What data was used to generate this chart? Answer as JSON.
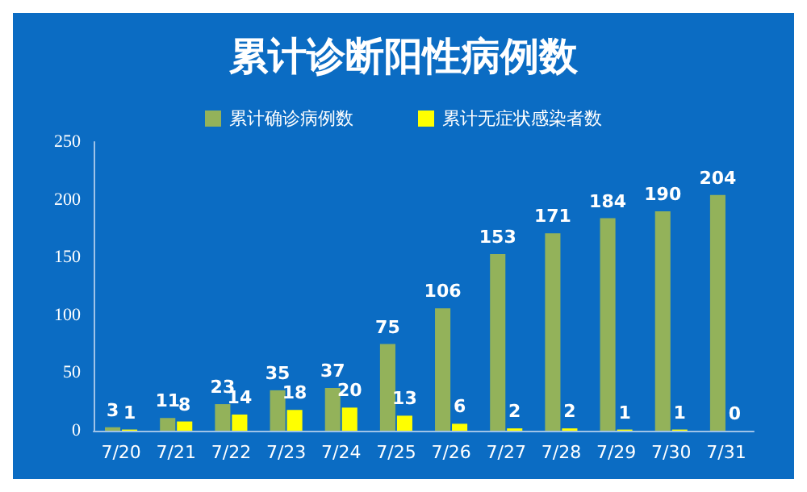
{
  "chart_data": {
    "type": "bar",
    "title": "累计诊断阳性病例数",
    "categories": [
      "7/20",
      "7/21",
      "7/22",
      "7/23",
      "7/24",
      "7/25",
      "7/26",
      "7/27",
      "7/28",
      "7/29",
      "7/30",
      "7/31"
    ],
    "series": [
      {
        "name": "累计确诊病例数",
        "color": "#93b25a",
        "values": [
          3,
          11,
          23,
          35,
          37,
          75,
          106,
          153,
          171,
          184,
          190,
          204
        ]
      },
      {
        "name": "累计无症状感染者数",
        "color": "#ffff00",
        "values": [
          1,
          8,
          14,
          18,
          20,
          13,
          6,
          2,
          2,
          1,
          1,
          0
        ]
      }
    ],
    "ylim": [
      0,
      250
    ],
    "yticks": [
      0,
      50,
      100,
      150,
      200,
      250
    ],
    "grid": false,
    "legend": "top",
    "data_labels": true
  }
}
